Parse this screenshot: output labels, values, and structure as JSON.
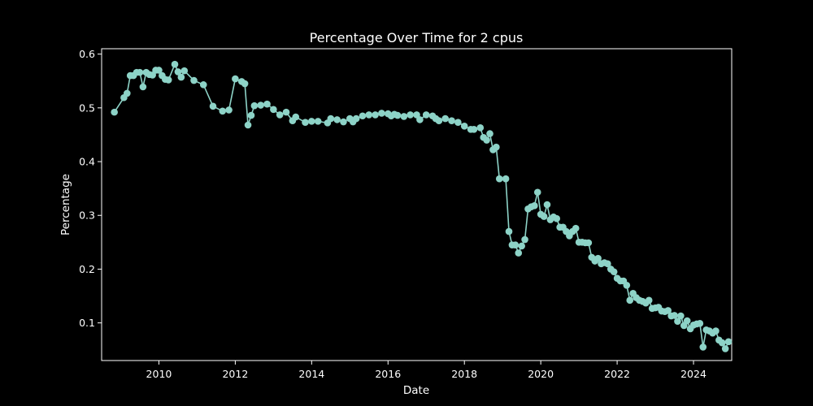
{
  "chart_data": {
    "type": "line",
    "title": "Percentage Over Time for 2 cpus",
    "xlabel": "Date",
    "ylabel": "Percentage",
    "xlim": [
      "2008-07-01",
      "2025-01-01"
    ],
    "ylim": [
      0.03,
      0.61
    ],
    "x_ticks": [
      "2010",
      "2012",
      "2014",
      "2016",
      "2018",
      "2020",
      "2022",
      "2024"
    ],
    "y_ticks": [
      "0.1",
      "0.2",
      "0.3",
      "0.4",
      "0.5",
      "0.6"
    ],
    "grid": false,
    "colors": {
      "background": "#000000",
      "axes": "#ffffff",
      "series": "#8dd3c7"
    },
    "series": [
      {
        "points": [
          [
            "2008-11",
            0.492
          ],
          [
            "2009-02",
            0.519
          ],
          [
            "2009-03",
            0.527
          ],
          [
            "2009-04",
            0.56
          ],
          [
            "2009-05",
            0.56
          ],
          [
            "2009-06",
            0.566
          ],
          [
            "2009-07",
            0.566
          ],
          [
            "2009-08",
            0.539
          ],
          [
            "2009-09",
            0.566
          ],
          [
            "2009-10",
            0.562
          ],
          [
            "2009-11",
            0.561
          ],
          [
            "2009-12",
            0.57
          ],
          [
            "2010-01",
            0.57
          ],
          [
            "2010-02",
            0.56
          ],
          [
            "2010-03",
            0.553
          ],
          [
            "2010-04",
            0.552
          ],
          [
            "2010-06",
            0.581
          ],
          [
            "2010-07",
            0.567
          ],
          [
            "2010-08",
            0.557
          ],
          [
            "2010-09",
            0.569
          ],
          [
            "2010-12",
            0.551
          ],
          [
            "2011-03",
            0.543
          ],
          [
            "2011-06",
            0.503
          ],
          [
            "2011-09",
            0.494
          ],
          [
            "2011-11",
            0.496
          ],
          [
            "2012-01",
            0.554
          ],
          [
            "2012-03",
            0.549
          ],
          [
            "2012-04",
            0.545
          ],
          [
            "2012-05",
            0.468
          ],
          [
            "2012-06",
            0.486
          ],
          [
            "2012-07",
            0.504
          ],
          [
            "2012-09",
            0.505
          ],
          [
            "2012-11",
            0.507
          ],
          [
            "2013-01",
            0.497
          ],
          [
            "2013-03",
            0.487
          ],
          [
            "2013-05",
            0.492
          ],
          [
            "2013-07",
            0.476
          ],
          [
            "2013-08",
            0.483
          ],
          [
            "2013-11",
            0.473
          ],
          [
            "2014-01",
            0.475
          ],
          [
            "2014-03",
            0.475
          ],
          [
            "2014-06",
            0.472
          ],
          [
            "2014-07",
            0.48
          ],
          [
            "2014-09",
            0.478
          ],
          [
            "2014-11",
            0.474
          ],
          [
            "2015-01",
            0.48
          ],
          [
            "2015-02",
            0.474
          ],
          [
            "2015-03",
            0.48
          ],
          [
            "2015-05",
            0.485
          ],
          [
            "2015-07",
            0.487
          ],
          [
            "2015-09",
            0.487
          ],
          [
            "2015-11",
            0.49
          ],
          [
            "2016-01",
            0.489
          ],
          [
            "2016-02",
            0.485
          ],
          [
            "2016-03",
            0.488
          ],
          [
            "2016-04",
            0.486
          ],
          [
            "2016-06",
            0.484
          ],
          [
            "2016-08",
            0.487
          ],
          [
            "2016-10",
            0.487
          ],
          [
            "2016-11",
            0.478
          ],
          [
            "2017-01",
            0.487
          ],
          [
            "2017-03",
            0.485
          ],
          [
            "2017-04",
            0.48
          ],
          [
            "2017-05",
            0.476
          ],
          [
            "2017-07",
            0.48
          ],
          [
            "2017-09",
            0.476
          ],
          [
            "2017-11",
            0.473
          ],
          [
            "2018-01",
            0.466
          ],
          [
            "2018-03",
            0.46
          ],
          [
            "2018-04",
            0.46
          ],
          [
            "2018-06",
            0.463
          ],
          [
            "2018-07",
            0.445
          ],
          [
            "2018-08",
            0.44
          ],
          [
            "2018-09",
            0.452
          ],
          [
            "2018-10",
            0.422
          ],
          [
            "2018-11",
            0.427
          ],
          [
            "2018-12",
            0.368
          ],
          [
            "2019-02",
            0.368
          ],
          [
            "2019-03",
            0.27
          ],
          [
            "2019-04",
            0.245
          ],
          [
            "2019-05",
            0.245
          ],
          [
            "2019-06",
            0.23
          ],
          [
            "2019-07",
            0.243
          ],
          [
            "2019-08",
            0.255
          ],
          [
            "2019-09",
            0.312
          ],
          [
            "2019-10",
            0.316
          ],
          [
            "2019-11",
            0.318
          ],
          [
            "2019-12",
            0.343
          ],
          [
            "2020-01",
            0.302
          ],
          [
            "2020-02",
            0.298
          ],
          [
            "2020-03",
            0.32
          ],
          [
            "2020-04",
            0.292
          ],
          [
            "2020-05",
            0.297
          ],
          [
            "2020-06",
            0.294
          ],
          [
            "2020-07",
            0.278
          ],
          [
            "2020-08",
            0.278
          ],
          [
            "2020-09",
            0.27
          ],
          [
            "2020-10",
            0.262
          ],
          [
            "2020-11",
            0.27
          ],
          [
            "2020-12",
            0.276
          ],
          [
            "2021-01",
            0.25
          ],
          [
            "2021-02",
            0.25
          ],
          [
            "2021-03",
            0.249
          ],
          [
            "2021-04",
            0.249
          ],
          [
            "2021-05",
            0.222
          ],
          [
            "2021-06",
            0.215
          ],
          [
            "2021-07",
            0.22
          ],
          [
            "2021-08",
            0.21
          ],
          [
            "2021-09",
            0.212
          ],
          [
            "2021-10",
            0.21
          ],
          [
            "2021-11",
            0.2
          ],
          [
            "2021-12",
            0.195
          ],
          [
            "2022-01",
            0.183
          ],
          [
            "2022-02",
            0.178
          ],
          [
            "2022-03",
            0.178
          ],
          [
            "2022-04",
            0.17
          ],
          [
            "2022-05",
            0.142
          ],
          [
            "2022-06",
            0.155
          ],
          [
            "2022-07",
            0.147
          ],
          [
            "2022-08",
            0.142
          ],
          [
            "2022-09",
            0.14
          ],
          [
            "2022-10",
            0.137
          ],
          [
            "2022-11",
            0.142
          ],
          [
            "2022-12",
            0.127
          ],
          [
            "2023-01",
            0.128
          ],
          [
            "2023-02",
            0.129
          ],
          [
            "2023-03",
            0.122
          ],
          [
            "2023-04",
            0.121
          ],
          [
            "2023-05",
            0.123
          ],
          [
            "2023-06",
            0.113
          ],
          [
            "2023-07",
            0.114
          ],
          [
            "2023-08",
            0.103
          ],
          [
            "2023-09",
            0.113
          ],
          [
            "2023-10",
            0.095
          ],
          [
            "2023-11",
            0.104
          ],
          [
            "2023-12",
            0.089
          ],
          [
            "2024-01",
            0.096
          ],
          [
            "2024-02",
            0.098
          ],
          [
            "2024-03",
            0.099
          ],
          [
            "2024-04",
            0.055
          ],
          [
            "2024-05",
            0.087
          ],
          [
            "2024-06",
            0.085
          ],
          [
            "2024-07",
            0.081
          ],
          [
            "2024-08",
            0.085
          ],
          [
            "2024-09",
            0.068
          ],
          [
            "2024-10",
            0.063
          ],
          [
            "2024-11",
            0.052
          ],
          [
            "2024-12",
            0.065
          ]
        ]
      }
    ]
  }
}
